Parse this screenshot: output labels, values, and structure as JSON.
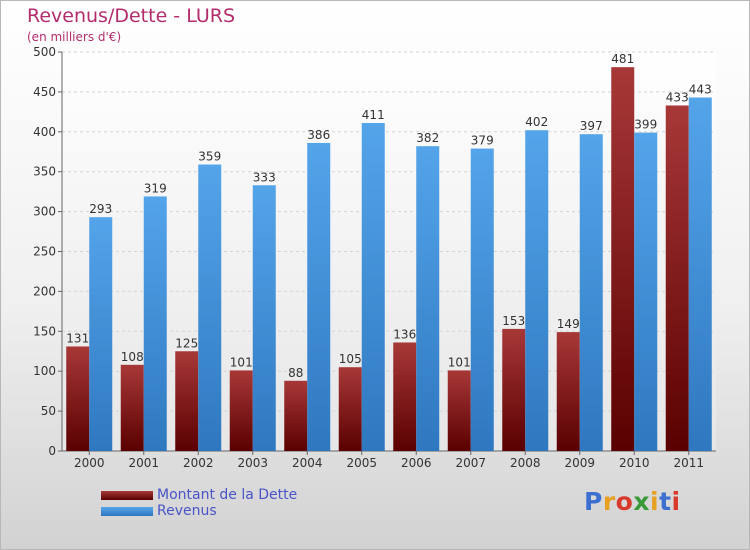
{
  "chart_data": {
    "type": "bar",
    "title": "Revenus/Dette - LURS",
    "subtitle": "(en milliers d'€)",
    "categories": [
      "2000",
      "2001",
      "2002",
      "2003",
      "2004",
      "2005",
      "2006",
      "2007",
      "2008",
      "2009",
      "2010",
      "2011"
    ],
    "series": [
      {
        "name": "Montant de la Dette",
        "color": "#8b1a1a",
        "values": [
          131,
          108,
          125,
          101,
          88,
          105,
          136,
          101,
          153,
          149,
          481,
          433
        ]
      },
      {
        "name": "Revenus",
        "color": "#3d8fd8",
        "values": [
          293,
          319,
          359,
          333,
          386,
          411,
          382,
          379,
          402,
          397,
          399,
          443
        ]
      }
    ],
    "ylim": [
      0,
      500
    ],
    "yticks": [
      0,
      50,
      100,
      150,
      200,
      250,
      300,
      350,
      400,
      450,
      500
    ],
    "grid": true,
    "legend": "bottom-left",
    "logo_text": "Proxiti"
  }
}
